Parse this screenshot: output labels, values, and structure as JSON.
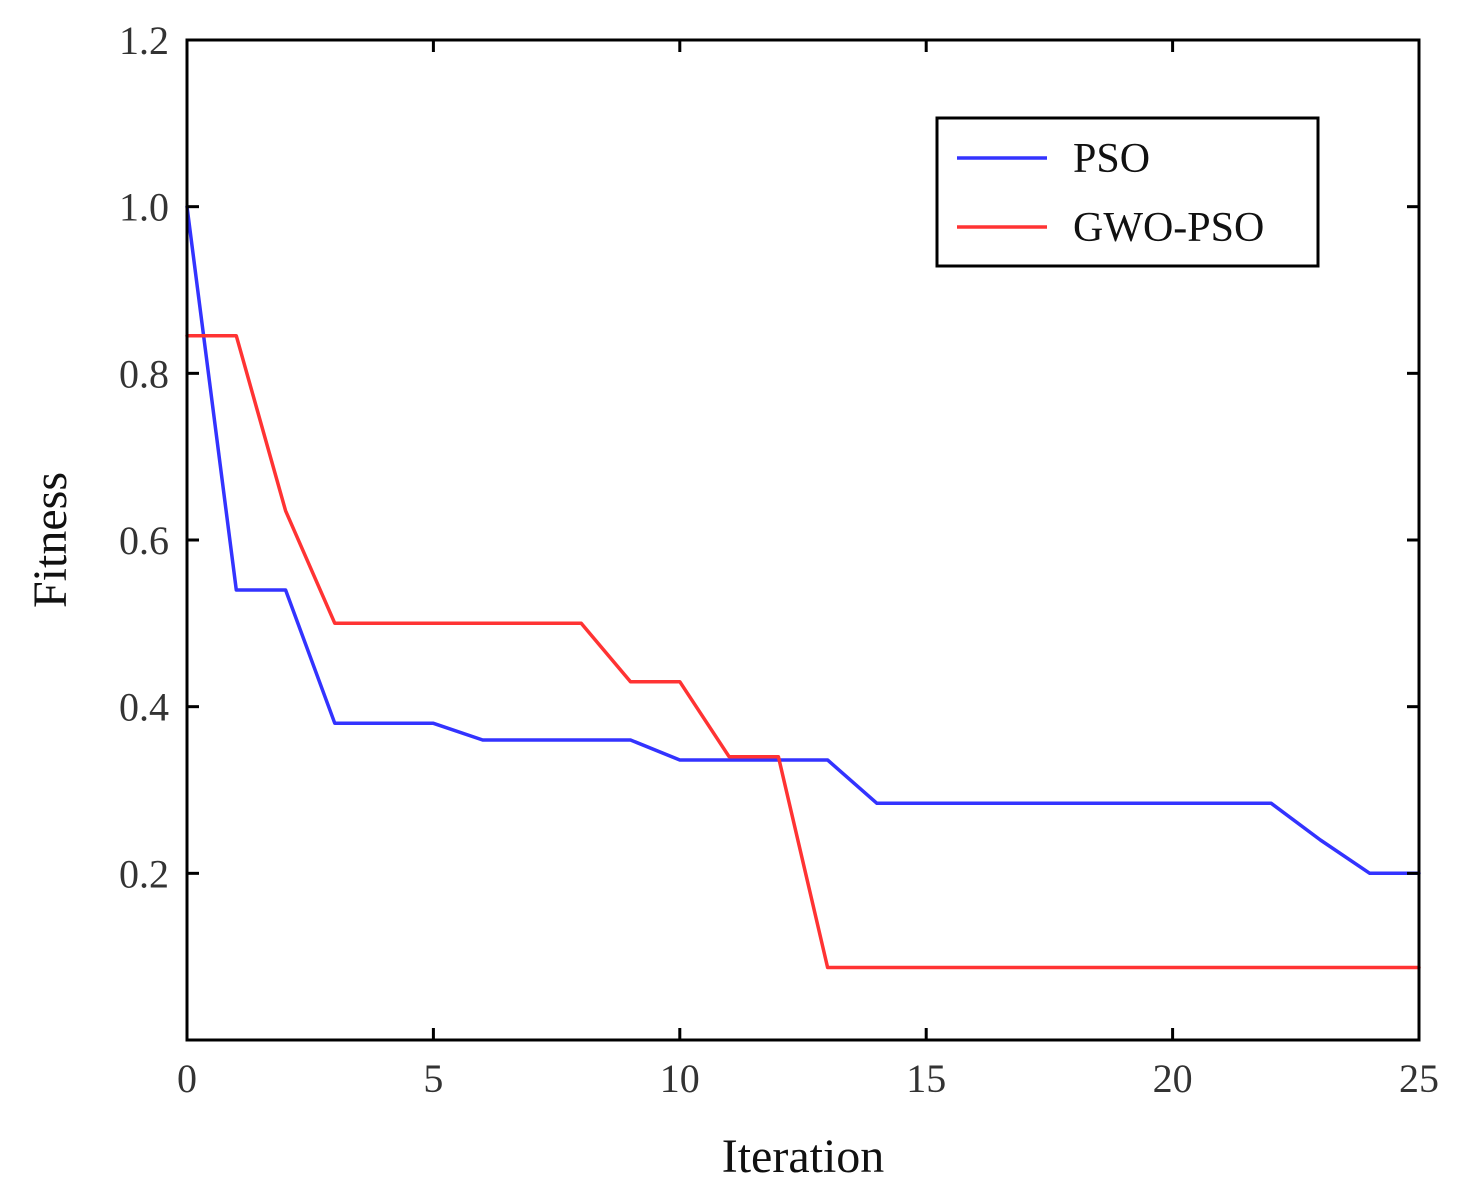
{
  "chart_data": {
    "type": "line",
    "title": "",
    "xlabel": "Iteration",
    "ylabel": "Fitness",
    "xlim": [
      0,
      25
    ],
    "ylim": [
      0,
      1.2
    ],
    "xticks": [
      0,
      5,
      10,
      15,
      20,
      25
    ],
    "yticks": [
      0.2,
      0.4,
      0.6,
      0.8,
      1.0,
      1.2
    ],
    "xtick_labels": [
      "0",
      "5",
      "10",
      "15",
      "20",
      "25"
    ],
    "ytick_labels": [
      "0.2",
      "0.4",
      "0.6",
      "0.8",
      "1.0",
      "1.2"
    ],
    "grid": false,
    "legend_position": "top-right",
    "series": [
      {
        "name": "PSO",
        "color": "#3333ff",
        "x": [
          0,
          1,
          2,
          3,
          4,
          5,
          6,
          7,
          8,
          9,
          10,
          11,
          12,
          13,
          14,
          15,
          16,
          17,
          18,
          19,
          20,
          21,
          22,
          23,
          24,
          25
        ],
        "y": [
          1.0,
          0.54,
          0.54,
          0.38,
          0.38,
          0.38,
          0.36,
          0.36,
          0.36,
          0.36,
          0.336,
          0.336,
          0.336,
          0.336,
          0.284,
          0.284,
          0.284,
          0.284,
          0.284,
          0.284,
          0.284,
          0.284,
          0.284,
          0.24,
          0.2,
          0.2
        ]
      },
      {
        "name": "GWO-PSO",
        "color": "#ff3333",
        "x": [
          0,
          1,
          2,
          3,
          4,
          5,
          6,
          7,
          8,
          9,
          10,
          11,
          12,
          13,
          14,
          15,
          16,
          17,
          18,
          19,
          20,
          21,
          22,
          23,
          24,
          25
        ],
        "y": [
          0.845,
          0.845,
          0.635,
          0.5,
          0.5,
          0.5,
          0.5,
          0.5,
          0.5,
          0.43,
          0.43,
          0.34,
          0.34,
          0.087,
          0.087,
          0.087,
          0.087,
          0.087,
          0.087,
          0.087,
          0.087,
          0.087,
          0.087,
          0.087,
          0.087,
          0.087
        ]
      }
    ]
  }
}
